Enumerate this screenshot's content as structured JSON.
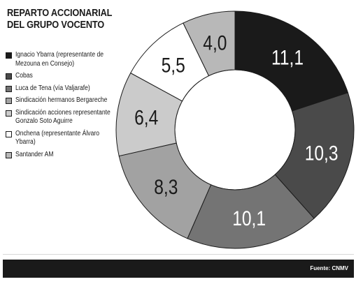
{
  "title_line1": "REPARTO ACCIONARIAL",
  "title_line2": "DEL GRUPO VOCENTO",
  "legend": [
    {
      "label": "Ignacio Ybarra (representante de Mezouna en Consejo)",
      "color": "#1a1a1a"
    },
    {
      "label": "Cobas",
      "color": "#4a4a4a"
    },
    {
      "label": "Luca de Tena (vía Valjarafe)",
      "color": "#747474"
    },
    {
      "label": "Sindicación hermanos Bergareche",
      "color": "#a2a2a2"
    },
    {
      "label": "Sindicación acciones representante Gonzalo Soto Aguirre",
      "color": "#cbcbcb"
    },
    {
      "label": "Onchena (representante Álvaro Ybarra)",
      "color": "#ffffff"
    },
    {
      "label": "Santander AM",
      "color": "#b8b8b8"
    }
  ],
  "footer_source": "Fuente: CNMV",
  "chart_data": {
    "type": "pie",
    "donut": true,
    "title": "REPARTO ACCIONARIAL DEL GRUPO VOCENTO",
    "categories": [
      "Ignacio Ybarra (representante de Mezouna en Consejo)",
      "Cobas",
      "Luca de Tena (vía Valjarafe)",
      "Sindicación hermanos Bergareche",
      "Sindicación acciones representante Gonzalo Soto Aguirre",
      "Onchena (representante Álvaro Ybarra)",
      "Santander AM"
    ],
    "values": [
      11.1,
      10.3,
      10.1,
      8.3,
      6.4,
      5.5,
      4.0
    ],
    "labels": [
      "11,1",
      "10,3",
      "10,1",
      "8,3",
      "6,4",
      "5,5",
      "4,0"
    ],
    "colors": [
      "#1a1a1a",
      "#4a4a4a",
      "#747474",
      "#a2a2a2",
      "#cbcbcb",
      "#ffffff",
      "#b8b8b8"
    ],
    "label_colors": [
      "#ffffff",
      "#ffffff",
      "#ffffff",
      "#1a1a1a",
      "#1a1a1a",
      "#1a1a1a",
      "#1a1a1a"
    ],
    "start_angle": "top",
    "direction": "clockwise"
  }
}
